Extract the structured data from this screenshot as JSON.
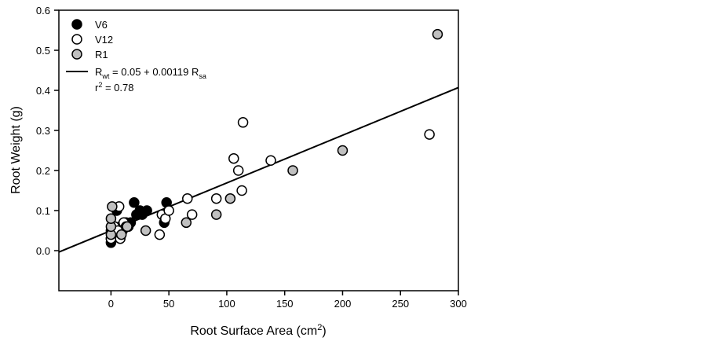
{
  "chart_data": {
    "type": "scatter",
    "xlabel": "Root Surface Area (cm",
    "xlabel_sup": "2",
    "xlabel_close": ")",
    "ylabel": "Root Weight (g)",
    "xlim": [
      -45,
      300
    ],
    "ylim": [
      -0.1,
      0.6
    ],
    "xticks": [
      0,
      50,
      100,
      150,
      200,
      250,
      300
    ],
    "yticks": [
      0.0,
      0.1,
      0.2,
      0.3,
      0.4,
      0.5,
      0.6
    ],
    "ytick_labels": [
      "0.0",
      "0.1",
      "0.2",
      "0.3",
      "0.4",
      "0.5",
      "0.6"
    ],
    "grid": false,
    "legend_position": "top-left",
    "series": [
      {
        "name": "V6",
        "fill": "#000000",
        "points": [
          {
            "x": 0,
            "y": 0.02
          },
          {
            "x": 0,
            "y": 0.03
          },
          {
            "x": 0,
            "y": 0.05
          },
          {
            "x": 3,
            "y": 0.04
          },
          {
            "x": 5,
            "y": 0.1
          },
          {
            "x": 8,
            "y": 0.06
          },
          {
            "x": 10,
            "y": 0.05
          },
          {
            "x": 13,
            "y": 0.07
          },
          {
            "x": 15,
            "y": 0.06
          },
          {
            "x": 17,
            "y": 0.07
          },
          {
            "x": 20,
            "y": 0.12
          },
          {
            "x": 22,
            "y": 0.09
          },
          {
            "x": 25,
            "y": 0.1
          },
          {
            "x": 27,
            "y": 0.09
          },
          {
            "x": 31,
            "y": 0.1
          },
          {
            "x": 46,
            "y": 0.07
          },
          {
            "x": 48,
            "y": 0.12
          }
        ]
      },
      {
        "name": "V12",
        "fill": "#ffffff",
        "points": [
          {
            "x": 0,
            "y": 0.03
          },
          {
            "x": 3,
            "y": 0.06
          },
          {
            "x": 6,
            "y": 0.05
          },
          {
            "x": 7,
            "y": 0.11
          },
          {
            "x": 8,
            "y": 0.03
          },
          {
            "x": 11,
            "y": 0.07
          },
          {
            "x": 13,
            "y": 0.06
          },
          {
            "x": 42,
            "y": 0.04
          },
          {
            "x": 44,
            "y": 0.09
          },
          {
            "x": 47,
            "y": 0.08
          },
          {
            "x": 50,
            "y": 0.1
          },
          {
            "x": 66,
            "y": 0.13
          },
          {
            "x": 70,
            "y": 0.09
          },
          {
            "x": 91,
            "y": 0.13
          },
          {
            "x": 106,
            "y": 0.23
          },
          {
            "x": 110,
            "y": 0.2
          },
          {
            "x": 113,
            "y": 0.15
          },
          {
            "x": 114,
            "y": 0.32
          },
          {
            "x": 138,
            "y": 0.225
          },
          {
            "x": 275,
            "y": 0.29
          }
        ]
      },
      {
        "name": "R1",
        "fill": "#c0c0c0",
        "points": [
          {
            "x": 0,
            "y": 0.04
          },
          {
            "x": 0,
            "y": 0.06
          },
          {
            "x": 0,
            "y": 0.08
          },
          {
            "x": 1,
            "y": 0.11
          },
          {
            "x": 9,
            "y": 0.04
          },
          {
            "x": 14,
            "y": 0.06
          },
          {
            "x": 30,
            "y": 0.05
          },
          {
            "x": 65,
            "y": 0.07
          },
          {
            "x": 91,
            "y": 0.09
          },
          {
            "x": 103,
            "y": 0.13
          },
          {
            "x": 157,
            "y": 0.2
          },
          {
            "x": 200,
            "y": 0.25
          },
          {
            "x": 282,
            "y": 0.54
          }
        ]
      }
    ],
    "regression": {
      "intercept": 0.05,
      "slope": 0.00119,
      "x_range": [
        -45,
        300
      ],
      "legend_label": {
        "lhs_base": "R",
        "lhs_sub": "wt",
        "rhs_text": " = 0.05 + 0.00119 R",
        "rhs_sub": "sa"
      },
      "r2_label": {
        "base": "r",
        "sup": "2",
        "rest": " = 0.78"
      }
    }
  }
}
